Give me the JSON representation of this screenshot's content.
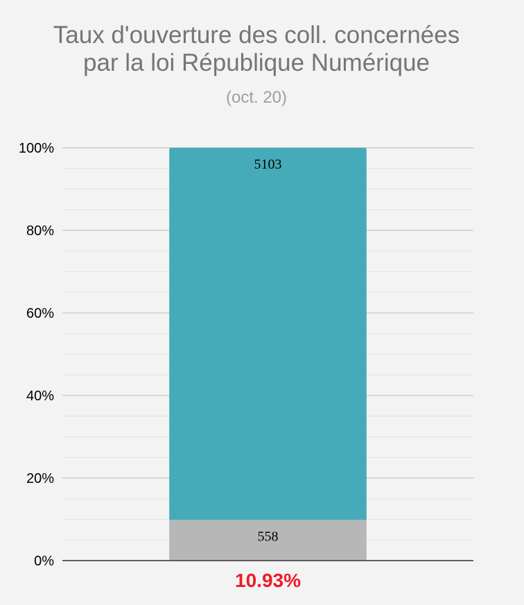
{
  "chart_data": {
    "type": "bar",
    "stacked": "percent",
    "title_lines": [
      "Taux d'ouverture des coll. concernées",
      "par la loi République Numérique"
    ],
    "subtitle": "(oct. 20)",
    "categories": [
      "10.93%"
    ],
    "category_color": "#ee1c25",
    "series": [
      {
        "values": [
          558
        ],
        "color": "#b7b7b7"
      },
      {
        "values": [
          5103
        ],
        "color": "#46abb8"
      }
    ],
    "ylim": [
      0,
      100
    ],
    "y_ticks": [
      "0%",
      "20%",
      "40%",
      "60%",
      "80%",
      "100%"
    ],
    "y_tick_values": [
      0,
      20,
      40,
      60,
      80,
      100
    ],
    "grid": true,
    "legend": "none"
  }
}
